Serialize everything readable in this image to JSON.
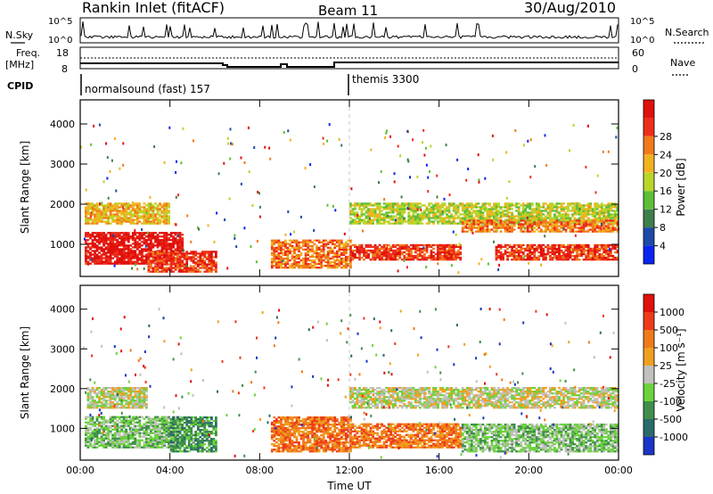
{
  "header": {
    "station": "Rankin Inlet (fitACF)",
    "beam": "Beam 11",
    "date": "30/Aug/2010"
  },
  "status_panel": {
    "nsky_label": "N.Sky",
    "nsearch_label": "N.Search",
    "nsky_ticks": [
      "10^5",
      "10^0"
    ],
    "nsearch_ticks": [
      "10^5",
      "10^0"
    ],
    "freq_label_1": "Freq.",
    "freq_label_2": "[MHz]",
    "freq_ticks": [
      "18",
      "8"
    ],
    "nave_label": "Nave",
    "nave_ticks": [
      "60",
      "0"
    ],
    "cpid_label": "CPID",
    "cpid_modes": [
      {
        "label": "normalsound (fast) 157",
        "start_hour": 0
      },
      {
        "label": "themis 3300",
        "start_hour": 12
      }
    ]
  },
  "chart_data": [
    {
      "type": "heatmap",
      "name": "power",
      "ylabel": "Slant Range [km]",
      "xlabel": "Time UT",
      "xlim": [
        0,
        24
      ],
      "ylim": [
        200,
        4600
      ],
      "x_ticks": [
        "00:00",
        "04:00",
        "08:00",
        "12:00",
        "16:00",
        "20:00",
        "00:00"
      ],
      "y_ticks": [
        1000,
        2000,
        3000,
        4000
      ],
      "colorbar": {
        "label": "Power [dB]",
        "ticks": [
          "4",
          "8",
          "12",
          "16",
          "20",
          "24",
          "28"
        ],
        "colors": [
          "#0a24f0",
          "#1c4aa8",
          "#3f7f4a",
          "#5dbf38",
          "#b8d62a",
          "#f2b21e",
          "#f07a1a",
          "#ee2d1a",
          "#e0100c"
        ]
      },
      "regions": [
        {
          "t0": 0.2,
          "t1": 4.6,
          "r0": 500,
          "r1": 1300,
          "level": 8
        },
        {
          "t0": 0.2,
          "t1": 4.0,
          "r0": 1500,
          "r1": 2000,
          "level": 5
        },
        {
          "t0": 3.0,
          "t1": 6.0,
          "r0": 300,
          "r1": 800,
          "level": 7
        },
        {
          "t0": 8.5,
          "t1": 12.0,
          "r0": 400,
          "r1": 1100,
          "level": 6
        },
        {
          "t0": 12.0,
          "t1": 17.0,
          "r0": 600,
          "r1": 1000,
          "level": 7
        },
        {
          "t0": 12.0,
          "t1": 24.0,
          "r0": 1500,
          "r1": 2000,
          "level": 4
        },
        {
          "t0": 17.0,
          "t1": 24.0,
          "r0": 1300,
          "r1": 1600,
          "level": 6
        },
        {
          "t0": 18.5,
          "t1": 24.0,
          "r0": 600,
          "r1": 1000,
          "level": 7
        }
      ]
    },
    {
      "type": "heatmap",
      "name": "velocity",
      "ylabel": "Slant Range [km]",
      "xlabel": "Time UT",
      "xlim": [
        0,
        24
      ],
      "ylim": [
        200,
        4600
      ],
      "x_ticks": [
        "00:00",
        "04:00",
        "08:00",
        "12:00",
        "16:00",
        "20:00",
        "00:00"
      ],
      "y_ticks": [
        1000,
        2000,
        3000,
        4000
      ],
      "colorbar": {
        "label": "Velocity [m s⁻¹]",
        "ticks": [
          "1000",
          "500",
          "100",
          "25",
          "-25",
          "-100",
          "-500",
          "-1000"
        ],
        "colors": [
          "#1a36c8",
          "#2a6a6a",
          "#3f8f4a",
          "#6cd23c",
          "#c0c0bc",
          "#f0a01e",
          "#f07a1a",
          "#ee3a1a",
          "#e0100c"
        ]
      },
      "regions": [
        {
          "t0": 0.2,
          "t1": 4.5,
          "r0": 500,
          "r1": 1300,
          "level": 3
        },
        {
          "t0": 0.3,
          "t1": 3.0,
          "r0": 1500,
          "r1": 2000,
          "level": 4
        },
        {
          "t0": 4.0,
          "t1": 6.0,
          "r0": 400,
          "r1": 1300,
          "level": 2
        },
        {
          "t0": 8.5,
          "t1": 12.0,
          "r0": 400,
          "r1": 1300,
          "level": 6
        },
        {
          "t0": 12.0,
          "t1": 17.0,
          "r0": 500,
          "r1": 1100,
          "level": 6
        },
        {
          "t0": 12.0,
          "t1": 24.0,
          "r0": 1500,
          "r1": 2000,
          "level": 4
        },
        {
          "t0": 17.0,
          "t1": 24.0,
          "r0": 400,
          "r1": 1100,
          "level": 3
        }
      ]
    }
  ]
}
